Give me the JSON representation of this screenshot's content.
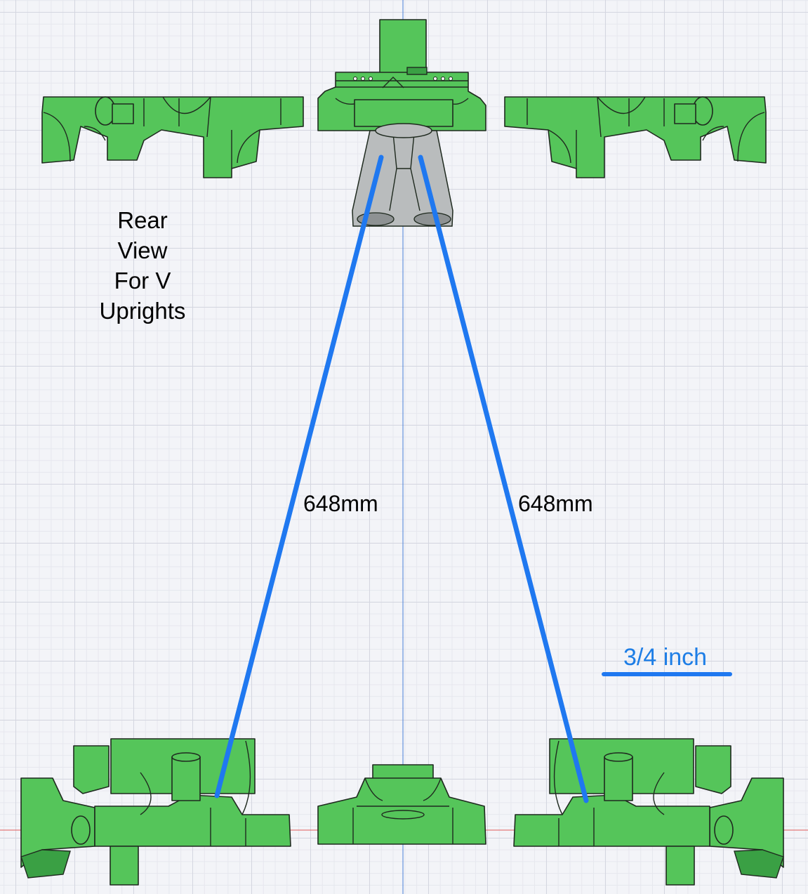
{
  "view_title": [
    "Rear",
    "View",
    "For V",
    "Uprights"
  ],
  "strut_left": {
    "length_label": "648mm"
  },
  "strut_right": {
    "length_label": "648mm"
  },
  "scale_bar": {
    "label": "3/4 inch"
  },
  "colors": {
    "part": "#55c55a",
    "strut": "#1f78f0",
    "cone": "#b9bcbd",
    "centerline": "#4a7fd8",
    "axis": "#e05a5a",
    "grid": "#d4d6e0"
  }
}
